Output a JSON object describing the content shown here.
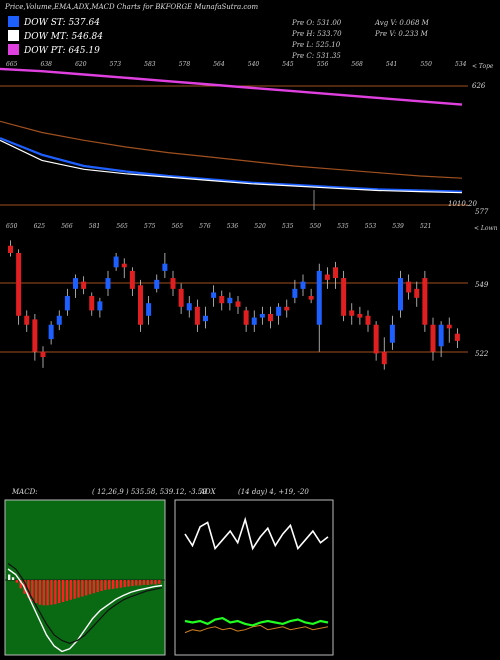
{
  "header": {
    "title": "Price,Volume,EMA,ADX,MACD Charts for BKFORGE MunafaSutra.com"
  },
  "legend": [
    {
      "label": "DOW ST: 537.64",
      "color": "#1e60ff"
    },
    {
      "label": "DOW MT: 546.84",
      "color": "#ffffff"
    },
    {
      "label": "DOW PT: 645.19",
      "color": "#e040e0"
    }
  ],
  "info": {
    "prev_open": "Pre O: 531.00",
    "prev_high": "Pre H: 533.70",
    "prev_low": "Pre L: 525.10",
    "prev_close": "Pre C: 531.35",
    "avg_volume": "Avg V: 0.068 M",
    "prev_volume": "Pre V: 0.233 M"
  },
  "chart_data": [
    {
      "type": "line",
      "panel": "price-ema",
      "top_labels": [
        "665",
        "638",
        "620",
        "573",
        "583",
        "578",
        "564",
        "540",
        "545",
        "556",
        "568",
        "541",
        "550",
        "534"
      ],
      "right_labels": [
        "626",
        "1010.20"
      ],
      "right_header": "< Tope",
      "series": [
        {
          "color": "#e040e0",
          "values": [
            662,
            660,
            657,
            654,
            651,
            648,
            645,
            642,
            639,
            636,
            633,
            630
          ]
        },
        {
          "color": "#1e60ff",
          "values": [
            600,
            585,
            575,
            570,
            566,
            563,
            560,
            558,
            556,
            554,
            553,
            552
          ]
        },
        {
          "color": "#ffffff",
          "values": [
            598,
            580,
            572,
            568,
            565,
            562,
            559,
            557,
            555,
            553,
            552,
            551
          ]
        },
        {
          "color": "#a05020",
          "values": [
            615,
            605,
            598,
            592,
            587,
            583,
            579,
            575,
            572,
            569,
            566,
            564
          ]
        }
      ]
    },
    {
      "type": "bar",
      "panel": "candles",
      "top_labels": [
        "650",
        "625",
        "566",
        "581",
        "565",
        "575",
        "565",
        "576",
        "536",
        "520",
        "535",
        "550",
        "535",
        "553",
        "539",
        "521"
      ],
      "right_labels": [
        "577",
        "549",
        "522"
      ],
      "right_header": "< Lown",
      "candles": [
        {
          "o": 584,
          "c": 580,
          "h": 587,
          "l": 578,
          "up": false
        },
        {
          "o": 580,
          "c": 545,
          "h": 582,
          "l": 540,
          "up": false
        },
        {
          "o": 545,
          "c": 540,
          "h": 548,
          "l": 536,
          "up": false
        },
        {
          "o": 543,
          "c": 525,
          "h": 546,
          "l": 520,
          "up": false
        },
        {
          "o": 525,
          "c": 522,
          "h": 528,
          "l": 516,
          "up": false
        },
        {
          "o": 532,
          "c": 540,
          "h": 542,
          "l": 529,
          "up": true
        },
        {
          "o": 540,
          "c": 545,
          "h": 548,
          "l": 537,
          "up": true
        },
        {
          "o": 548,
          "c": 556,
          "h": 560,
          "l": 545,
          "up": true
        },
        {
          "o": 560,
          "c": 566,
          "h": 568,
          "l": 555,
          "up": true
        },
        {
          "o": 564,
          "c": 560,
          "h": 567,
          "l": 557,
          "up": false
        },
        {
          "o": 556,
          "c": 548,
          "h": 558,
          "l": 545,
          "up": false
        },
        {
          "o": 548,
          "c": 553,
          "h": 555,
          "l": 544,
          "up": true
        },
        {
          "o": 560,
          "c": 566,
          "h": 570,
          "l": 556,
          "up": true
        },
        {
          "o": 572,
          "c": 578,
          "h": 580,
          "l": 570,
          "up": true
        },
        {
          "o": 574,
          "c": 572,
          "h": 577,
          "l": 566,
          "up": false
        },
        {
          "o": 570,
          "c": 560,
          "h": 572,
          "l": 556,
          "up": false
        },
        {
          "o": 562,
          "c": 540,
          "h": 565,
          "l": 536,
          "up": false
        },
        {
          "o": 545,
          "c": 552,
          "h": 556,
          "l": 540,
          "up": true
        },
        {
          "o": 560,
          "c": 565,
          "h": 568,
          "l": 558,
          "up": true
        },
        {
          "o": 570,
          "c": 574,
          "h": 580,
          "l": 566,
          "up": true
        },
        {
          "o": 566,
          "c": 560,
          "h": 570,
          "l": 556,
          "up": false
        },
        {
          "o": 560,
          "c": 550,
          "h": 563,
          "l": 546,
          "up": false
        },
        {
          "o": 548,
          "c": 552,
          "h": 556,
          "l": 544,
          "up": true
        },
        {
          "o": 550,
          "c": 540,
          "h": 554,
          "l": 536,
          "up": false
        },
        {
          "o": 542,
          "c": 545,
          "h": 550,
          "l": 538,
          "up": true
        },
        {
          "o": 555,
          "c": 558,
          "h": 562,
          "l": 550,
          "up": true
        },
        {
          "o": 556,
          "c": 552,
          "h": 559,
          "l": 548,
          "up": false
        },
        {
          "o": 552,
          "c": 555,
          "h": 558,
          "l": 548,
          "up": true
        },
        {
          "o": 553,
          "c": 550,
          "h": 556,
          "l": 546,
          "up": false
        },
        {
          "o": 548,
          "c": 540,
          "h": 550,
          "l": 536,
          "up": false
        },
        {
          "o": 540,
          "c": 544,
          "h": 548,
          "l": 536,
          "up": true
        },
        {
          "o": 544,
          "c": 546,
          "h": 550,
          "l": 540,
          "up": true
        },
        {
          "o": 546,
          "c": 542,
          "h": 550,
          "l": 538,
          "up": false
        },
        {
          "o": 545,
          "c": 550,
          "h": 552,
          "l": 540,
          "up": true
        },
        {
          "o": 550,
          "c": 548,
          "h": 554,
          "l": 544,
          "up": false
        },
        {
          "o": 555,
          "c": 560,
          "h": 565,
          "l": 552,
          "up": true
        },
        {
          "o": 560,
          "c": 564,
          "h": 568,
          "l": 556,
          "up": true
        },
        {
          "o": 556,
          "c": 554,
          "h": 560,
          "l": 552,
          "up": false
        },
        {
          "o": 540,
          "c": 570,
          "h": 574,
          "l": 525,
          "up": true
        },
        {
          "o": 568,
          "c": 565,
          "h": 572,
          "l": 560,
          "up": false
        },
        {
          "o": 572,
          "c": 566,
          "h": 575,
          "l": 560,
          "up": false
        },
        {
          "o": 566,
          "c": 545,
          "h": 570,
          "l": 542,
          "up": false
        },
        {
          "o": 548,
          "c": 545,
          "h": 552,
          "l": 540,
          "up": false
        },
        {
          "o": 546,
          "c": 544,
          "h": 550,
          "l": 540,
          "up": false
        },
        {
          "o": 545,
          "c": 540,
          "h": 548,
          "l": 536,
          "up": false
        },
        {
          "o": 540,
          "c": 524,
          "h": 542,
          "l": 520,
          "up": false
        },
        {
          "o": 525,
          "c": 518,
          "h": 533,
          "l": 515,
          "up": false
        },
        {
          "o": 530,
          "c": 540,
          "h": 545,
          "l": 526,
          "up": true
        },
        {
          "o": 548,
          "c": 566,
          "h": 570,
          "l": 544,
          "up": true
        },
        {
          "o": 564,
          "c": 558,
          "h": 568,
          "l": 554,
          "up": false
        },
        {
          "o": 560,
          "c": 555,
          "h": 564,
          "l": 550,
          "up": false
        },
        {
          "o": 566,
          "c": 540,
          "h": 570,
          "l": 536,
          "up": false
        },
        {
          "o": 540,
          "c": 525,
          "h": 544,
          "l": 520,
          "up": false
        },
        {
          "o": 528,
          "c": 540,
          "h": 542,
          "l": 522,
          "up": true
        },
        {
          "o": 540,
          "c": 538,
          "h": 544,
          "l": 530,
          "up": false
        },
        {
          "o": 535,
          "c": 531,
          "h": 538,
          "l": 527,
          "up": false
        }
      ]
    },
    {
      "type": "bar",
      "panel": "macd",
      "label": "MACD:",
      "params": "( 12,26,9 ) 535.58,  539.12,  -3.59",
      "histogram": [
        0.1,
        0.05,
        -0.05,
        -0.15,
        -0.25,
        -0.32,
        -0.38,
        -0.42,
        -0.45,
        -0.46,
        -0.46,
        -0.45,
        -0.44,
        -0.42,
        -0.4,
        -0.38,
        -0.36,
        -0.34,
        -0.32,
        -0.3,
        -0.28,
        -0.26,
        -0.24,
        -0.22,
        -0.2,
        -0.18,
        -0.17,
        -0.16,
        -0.15,
        -0.14,
        -0.13,
        -0.12,
        -0.11,
        -0.1,
        -0.1,
        -0.09,
        -0.09,
        -0.08,
        -0.08,
        -0.07
      ],
      "macd_line": [
        0.2,
        0.1,
        -0.1,
        -0.4,
        -0.7,
        -1.0,
        -1.2,
        -1.3,
        -1.25,
        -1.1,
        -0.9,
        -0.7,
        -0.55,
        -0.45,
        -0.35,
        -0.28,
        -0.22,
        -0.18,
        -0.15,
        -0.12,
        -0.1
      ],
      "signal_line": [
        0.3,
        0.2,
        0.0,
        -0.3,
        -0.55,
        -0.8,
        -1.0,
        -1.1,
        -1.15,
        -1.1,
        -1.0,
        -0.85,
        -0.7,
        -0.55,
        -0.45,
        -0.36,
        -0.3,
        -0.25,
        -0.2,
        -0.17,
        -0.14
      ]
    },
    {
      "type": "line",
      "panel": "adx",
      "label": "ADX",
      "params": "(14 day) 4,  +19,  -20",
      "plus_di": [
        20,
        19,
        20,
        18,
        21,
        22,
        19,
        20,
        18,
        17,
        19,
        20,
        19,
        18,
        20,
        21,
        19,
        18,
        20,
        19
      ],
      "minus_di": [
        12,
        14,
        13,
        15,
        16,
        14,
        15,
        13,
        14,
        16,
        17,
        14,
        15,
        16,
        14,
        15,
        16,
        14,
        15,
        16
      ],
      "adx": [
        80,
        72,
        85,
        88,
        70,
        76,
        82,
        74,
        90,
        70,
        78,
        84,
        72,
        80,
        86,
        70,
        76,
        82,
        74,
        78
      ]
    }
  ]
}
